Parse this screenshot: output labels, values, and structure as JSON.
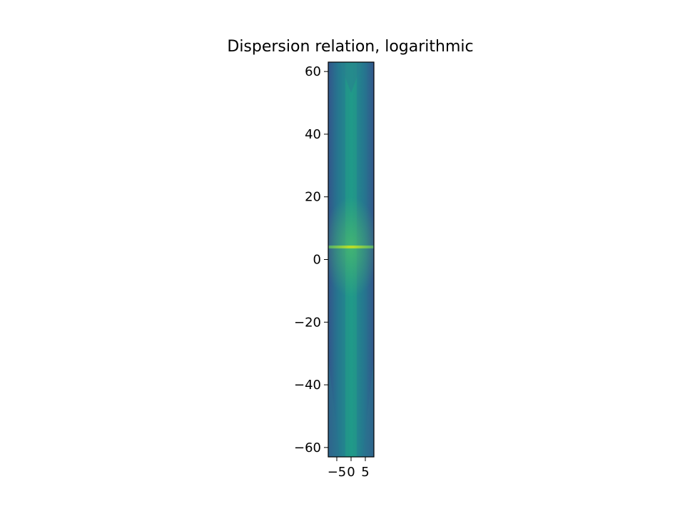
{
  "chart_data": {
    "type": "heatmap",
    "title": "Dispersion relation, logarithmic",
    "xlabel": "",
    "ylabel": "",
    "xlim": [
      -8,
      8
    ],
    "ylim": [
      -63,
      63
    ],
    "x_ticks": [
      {
        "value": -5,
        "label": "−5"
      },
      {
        "value": 0,
        "label": "0"
      },
      {
        "value": 5,
        "label": "5"
      }
    ],
    "y_ticks": [
      {
        "value": 60,
        "label": "60"
      },
      {
        "value": 40,
        "label": "40"
      },
      {
        "value": 20,
        "label": "20"
      },
      {
        "value": 0,
        "label": "0"
      },
      {
        "value": -20,
        "label": "−20"
      },
      {
        "value": -40,
        "label": "−40"
      },
      {
        "value": -60,
        "label": "−60"
      }
    ],
    "colormap": "viridis",
    "features": {
      "bright_band_y": 4,
      "central_ridge_x": 0
    }
  }
}
